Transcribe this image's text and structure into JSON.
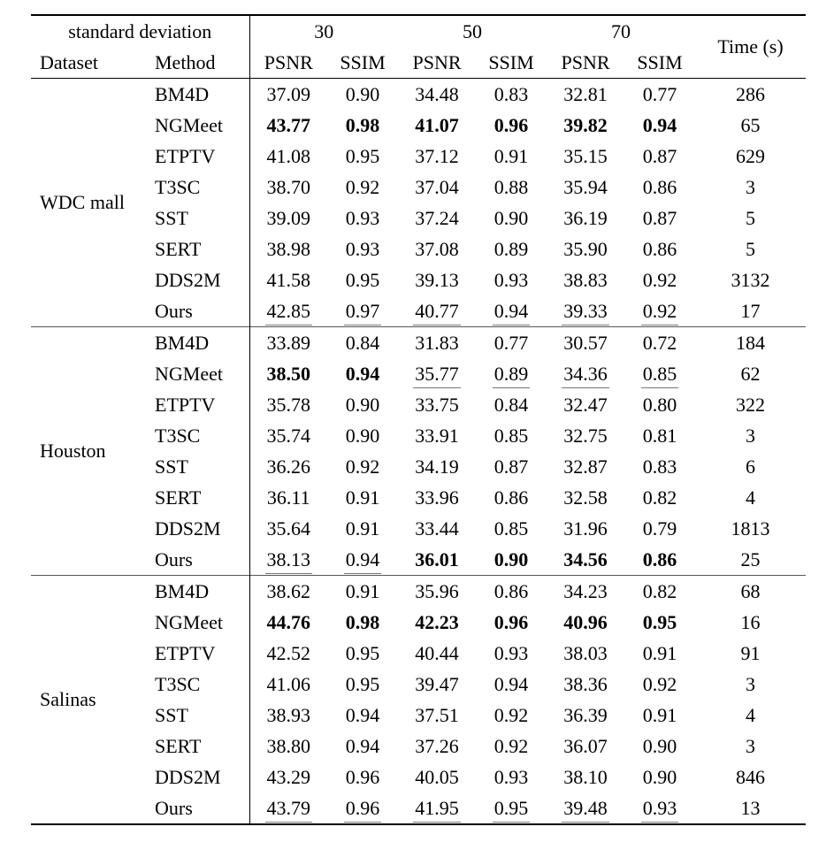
{
  "table": {
    "header": {
      "standard_deviation_label": "standard deviation",
      "dataset_label": "Dataset",
      "method_label": "Method",
      "noise_levels": [
        "30",
        "50",
        "70"
      ],
      "psnr_label": "PSNR",
      "ssim_label": "SSIM",
      "time_label": "Time (s)"
    },
    "groups": [
      {
        "dataset": "WDC mall",
        "rows": [
          {
            "method": "BM4D",
            "values": [
              "37.09",
              "0.90",
              "34.48",
              "0.83",
              "32.81",
              "0.77"
            ],
            "styles": [
              "",
              "",
              "",
              "",
              "",
              ""
            ],
            "time": "286"
          },
          {
            "method": "NGMeet",
            "values": [
              "43.77",
              "0.98",
              "41.07",
              "0.96",
              "39.82",
              "0.94"
            ],
            "styles": [
              "b",
              "b",
              "b",
              "b",
              "b",
              "b"
            ],
            "time": "65"
          },
          {
            "method": "ETPTV",
            "values": [
              "41.08",
              "0.95",
              "37.12",
              "0.91",
              "35.15",
              "0.87"
            ],
            "styles": [
              "",
              "",
              "",
              "",
              "",
              ""
            ],
            "time": "629"
          },
          {
            "method": "T3SC",
            "values": [
              "38.70",
              "0.92",
              "37.04",
              "0.88",
              "35.94",
              "0.86"
            ],
            "styles": [
              "",
              "",
              "",
              "",
              "",
              ""
            ],
            "time": "3"
          },
          {
            "method": "SST",
            "values": [
              "39.09",
              "0.93",
              "37.24",
              "0.90",
              "36.19",
              "0.87"
            ],
            "styles": [
              "",
              "",
              "",
              "",
              "",
              ""
            ],
            "time": "5"
          },
          {
            "method": "SERT",
            "values": [
              "38.98",
              "0.93",
              "37.08",
              "0.89",
              "35.90",
              "0.86"
            ],
            "styles": [
              "",
              "",
              "",
              "",
              "",
              ""
            ],
            "time": "5"
          },
          {
            "method": "DDS2M",
            "values": [
              "41.58",
              "0.95",
              "39.13",
              "0.93",
              "38.83",
              "0.92"
            ],
            "styles": [
              "",
              "",
              "",
              "",
              "",
              ""
            ],
            "time": "3132"
          },
          {
            "method": "Ours",
            "values": [
              "42.85",
              "0.97",
              "40.77",
              "0.94",
              "39.33",
              "0.92"
            ],
            "styles": [
              "u",
              "u",
              "u",
              "u",
              "u",
              "u"
            ],
            "time": "17"
          }
        ]
      },
      {
        "dataset": "Houston",
        "rows": [
          {
            "method": "BM4D",
            "values": [
              "33.89",
              "0.84",
              "31.83",
              "0.77",
              "30.57",
              "0.72"
            ],
            "styles": [
              "",
              "",
              "",
              "",
              "",
              ""
            ],
            "time": "184"
          },
          {
            "method": "NGMeet",
            "values": [
              "38.50",
              "0.94",
              "35.77",
              "0.89",
              "34.36",
              "0.85"
            ],
            "styles": [
              "b",
              "b",
              "u",
              "u",
              "u",
              "u"
            ],
            "time": "62"
          },
          {
            "method": "ETPTV",
            "values": [
              "35.78",
              "0.90",
              "33.75",
              "0.84",
              "32.47",
              "0.80"
            ],
            "styles": [
              "",
              "",
              "",
              "",
              "",
              ""
            ],
            "time": "322"
          },
          {
            "method": "T3SC",
            "values": [
              "35.74",
              "0.90",
              "33.91",
              "0.85",
              "32.75",
              "0.81"
            ],
            "styles": [
              "",
              "",
              "",
              "",
              "",
              ""
            ],
            "time": "3"
          },
          {
            "method": "SST",
            "values": [
              "36.26",
              "0.92",
              "34.19",
              "0.87",
              "32.87",
              "0.83"
            ],
            "styles": [
              "",
              "",
              "",
              "",
              "",
              ""
            ],
            "time": "6"
          },
          {
            "method": "SERT",
            "values": [
              "36.11",
              "0.91",
              "33.96",
              "0.86",
              "32.58",
              "0.82"
            ],
            "styles": [
              "",
              "",
              "",
              "",
              "",
              ""
            ],
            "time": "4"
          },
          {
            "method": "DDS2M",
            "values": [
              "35.64",
              "0.91",
              "33.44",
              "0.85",
              "31.96",
              "0.79"
            ],
            "styles": [
              "",
              "",
              "",
              "",
              "",
              ""
            ],
            "time": "1813"
          },
          {
            "method": "Ours",
            "values": [
              "38.13",
              "0.94",
              "36.01",
              "0.90",
              "34.56",
              "0.86"
            ],
            "styles": [
              "u",
              "u",
              "b",
              "b",
              "b",
              "b"
            ],
            "time": "25"
          }
        ]
      },
      {
        "dataset": "Salinas",
        "rows": [
          {
            "method": "BM4D",
            "values": [
              "38.62",
              "0.91",
              "35.96",
              "0.86",
              "34.23",
              "0.82"
            ],
            "styles": [
              "",
              "",
              "",
              "",
              "",
              ""
            ],
            "time": "68"
          },
          {
            "method": "NGMeet",
            "values": [
              "44.76",
              "0.98",
              "42.23",
              "0.96",
              "40.96",
              "0.95"
            ],
            "styles": [
              "b",
              "b",
              "b",
              "b",
              "b",
              "b"
            ],
            "time": "16"
          },
          {
            "method": "ETPTV",
            "values": [
              "42.52",
              "0.95",
              "40.44",
              "0.93",
              "38.03",
              "0.91"
            ],
            "styles": [
              "",
              "",
              "",
              "",
              "",
              ""
            ],
            "time": "91"
          },
          {
            "method": "T3SC",
            "values": [
              "41.06",
              "0.95",
              "39.47",
              "0.94",
              "38.36",
              "0.92"
            ],
            "styles": [
              "",
              "",
              "",
              "",
              "",
              ""
            ],
            "time": "3"
          },
          {
            "method": "SST",
            "values": [
              "38.93",
              "0.94",
              "37.51",
              "0.92",
              "36.39",
              "0.91"
            ],
            "styles": [
              "",
              "",
              "",
              "",
              "",
              ""
            ],
            "time": "4"
          },
          {
            "method": "SERT",
            "values": [
              "38.80",
              "0.94",
              "37.26",
              "0.92",
              "36.07",
              "0.90"
            ],
            "styles": [
              "",
              "",
              "",
              "",
              "",
              ""
            ],
            "time": "3"
          },
          {
            "method": "DDS2M",
            "values": [
              "43.29",
              "0.96",
              "40.05",
              "0.93",
              "38.10",
              "0.90"
            ],
            "styles": [
              "",
              "",
              "",
              "",
              "",
              ""
            ],
            "time": "846"
          },
          {
            "method": "Ours",
            "values": [
              "43.79",
              "0.96",
              "41.95",
              "0.95",
              "39.48",
              "0.93"
            ],
            "styles": [
              "u",
              "u",
              "u",
              "u",
              "u",
              "u"
            ],
            "time": "13"
          }
        ]
      }
    ]
  }
}
